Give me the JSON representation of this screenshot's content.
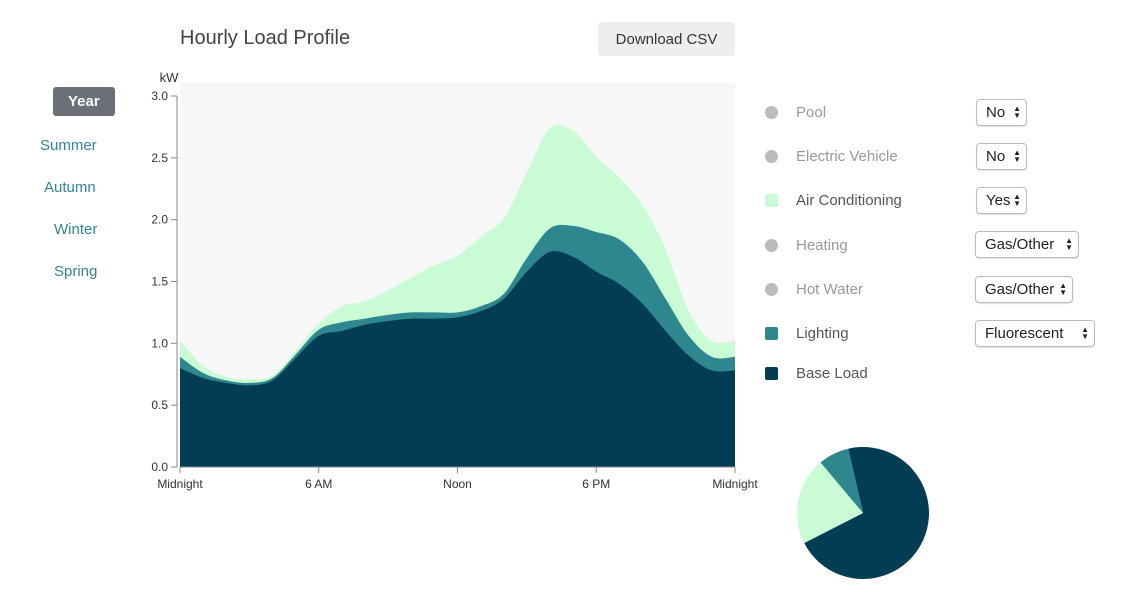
{
  "header": {
    "title": "Hourly Load Profile",
    "download_label": "Download CSV"
  },
  "seasons": [
    {
      "label": "Year",
      "active": true
    },
    {
      "label": "Summer",
      "active": false
    },
    {
      "label": "Autumn",
      "active": false
    },
    {
      "label": "Winter",
      "active": false
    },
    {
      "label": "Spring",
      "active": false
    }
  ],
  "legend": [
    {
      "label": "Pool",
      "value": "No",
      "enabled": false,
      "color": "#bbbbbb"
    },
    {
      "label": "Electric Vehicle",
      "value": "No",
      "enabled": false,
      "color": "#bbbbbb"
    },
    {
      "label": "Air Conditioning",
      "value": "Yes",
      "enabled": true,
      "color": "#c9fcd4"
    },
    {
      "label": "Heating",
      "value": "Gas/Other",
      "enabled": false,
      "color": "#bbbbbb"
    },
    {
      "label": "Hot Water",
      "value": "Gas/Other",
      "enabled": false,
      "color": "#bbbbbb"
    },
    {
      "label": "Lighting",
      "value": "Fluorescent",
      "enabled": true,
      "color": "#2e878f"
    },
    {
      "label": "Base Load",
      "value": "",
      "enabled": true,
      "color": "#033d54"
    }
  ],
  "chart_data": [
    {
      "type": "area",
      "stacked": true,
      "ylabel": "kW",
      "ylim": [
        0,
        3.0
      ],
      "y_ticks": [
        "0.0",
        "0.5",
        "1.0",
        "1.5",
        "2.0",
        "2.5",
        "3.0"
      ],
      "x_ticks": [
        "Midnight",
        "6 AM",
        "Noon",
        "6 PM",
        "Midnight"
      ],
      "x": [
        0,
        1,
        2,
        3,
        4,
        5,
        6,
        7,
        8,
        9,
        10,
        11,
        12,
        13,
        14,
        15,
        16,
        17,
        18,
        19,
        20,
        21,
        22,
        23,
        24
      ],
      "series": [
        {
          "name": "Base Load",
          "color": "#033d54",
          "values": [
            0.8,
            0.72,
            0.68,
            0.66,
            0.7,
            0.88,
            1.06,
            1.1,
            1.15,
            1.18,
            1.2,
            1.2,
            1.21,
            1.26,
            1.36,
            1.58,
            1.74,
            1.7,
            1.58,
            1.48,
            1.32,
            1.1,
            0.9,
            0.78,
            0.78
          ]
        },
        {
          "name": "Lighting",
          "color": "#2e878f",
          "values": [
            0.09,
            0.04,
            0.02,
            0.02,
            0.02,
            0.03,
            0.05,
            0.07,
            0.05,
            0.05,
            0.05,
            0.05,
            0.04,
            0.04,
            0.04,
            0.11,
            0.19,
            0.25,
            0.32,
            0.36,
            0.34,
            0.26,
            0.16,
            0.11,
            0.11
          ]
        },
        {
          "name": "Air Conditioning",
          "color": "#c9fcd4",
          "values": [
            0.13,
            0.06,
            0.03,
            0.03,
            0.02,
            0.03,
            0.05,
            0.13,
            0.14,
            0.2,
            0.28,
            0.38,
            0.46,
            0.56,
            0.61,
            0.69,
            0.81,
            0.77,
            0.61,
            0.5,
            0.46,
            0.4,
            0.2,
            0.13,
            0.13
          ]
        }
      ]
    },
    {
      "type": "pie",
      "slices": [
        {
          "name": "Base Load",
          "value": 0.711,
          "color": "#033d54"
        },
        {
          "name": "Air Conditioning",
          "value": 0.214,
          "color": "#c9fcd4"
        },
        {
          "name": "Lighting",
          "value": 0.075,
          "color": "#2e878f"
        }
      ]
    }
  ]
}
